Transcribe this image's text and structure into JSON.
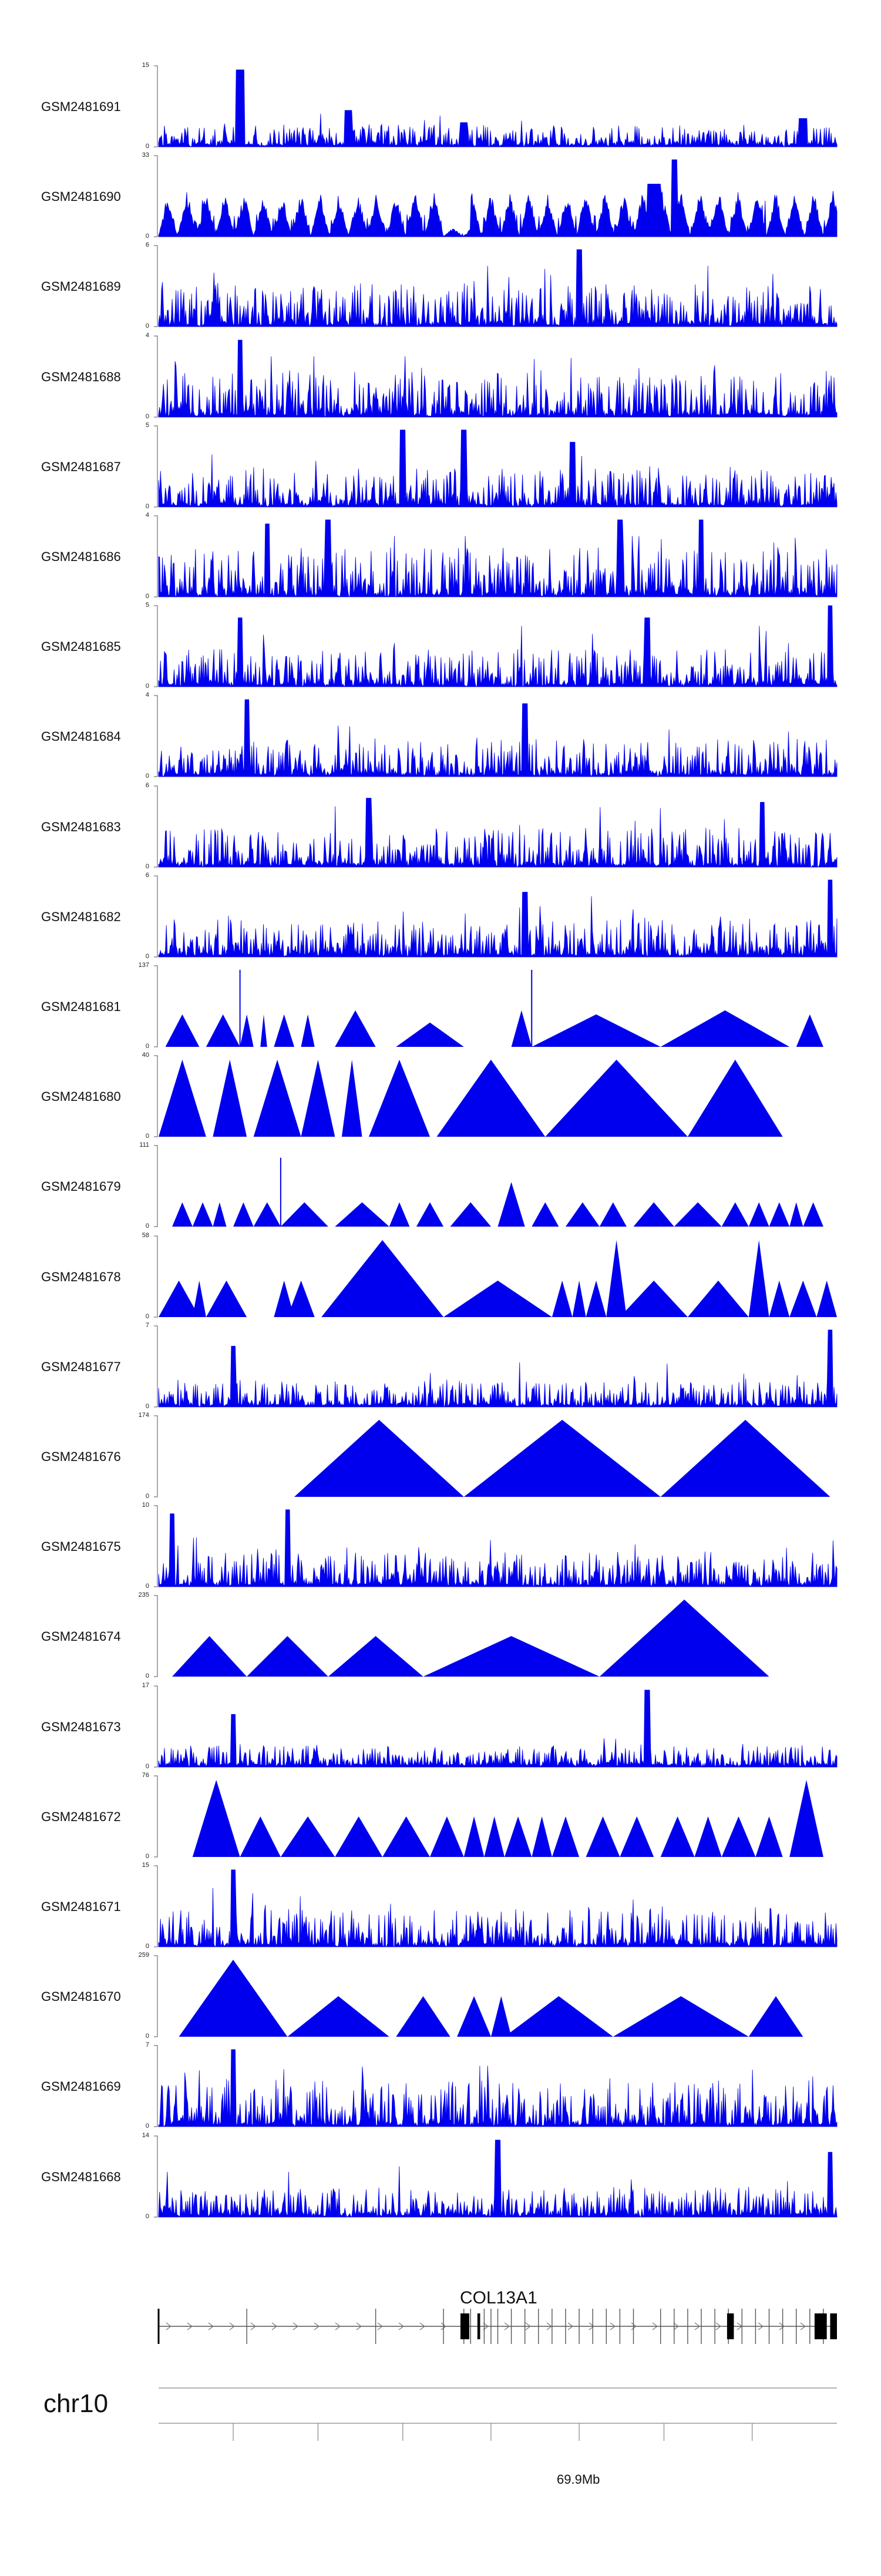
{
  "chart_data": {
    "type": "area",
    "color": "#0000ee",
    "tracks": [
      {
        "name": "GSM2481691",
        "ymax": "15",
        "ymin": "0",
        "peaks": [
          [
            0.12,
            0.95,
            0.006
          ],
          [
            0.28,
            0.45,
            0.006
          ],
          [
            0.45,
            0.3,
            0.006
          ],
          [
            0.95,
            0.35,
            0.006
          ]
        ],
        "base": 0.25,
        "mode": "noise",
        "seed": 1
      },
      {
        "name": "GSM2481690",
        "ymax": "33",
        "ymin": "0",
        "base": 0.45,
        "mode": "tri-dense",
        "seed": 2
      },
      {
        "name": "GSM2481689",
        "ymax": "6",
        "ymin": "0",
        "peaks": [
          [
            0.62,
            0.95,
            0.004
          ]
        ],
        "base": 0.5,
        "mode": "noise",
        "seed": 3
      },
      {
        "name": "GSM2481688",
        "ymax": "4",
        "ymin": "0",
        "peaks": [
          [
            0.12,
            0.95,
            0.004
          ]
        ],
        "base": 0.55,
        "mode": "noise",
        "seed": 4
      },
      {
        "name": "GSM2481687",
        "ymax": "5",
        "ymin": "0",
        "peaks": [
          [
            0.36,
            0.95,
            0.004
          ],
          [
            0.45,
            0.95,
            0.004
          ],
          [
            0.61,
            0.8,
            0.004
          ]
        ],
        "base": 0.45,
        "mode": "noise",
        "seed": 5
      },
      {
        "name": "GSM2481686",
        "ymax": "4",
        "ymin": "0",
        "peaks": [
          [
            0.16,
            0.9,
            0.004
          ],
          [
            0.25,
            0.95,
            0.004
          ],
          [
            0.68,
            0.95,
            0.004
          ],
          [
            0.8,
            0.95,
            0.004
          ]
        ],
        "base": 0.6,
        "mode": "noise",
        "seed": 6
      },
      {
        "name": "GSM2481685",
        "ymax": "5",
        "ymin": "0",
        "peaks": [
          [
            0.12,
            0.85,
            0.004
          ],
          [
            0.72,
            0.85,
            0.004
          ],
          [
            0.99,
            1.0,
            0.004
          ]
        ],
        "base": 0.45,
        "mode": "noise",
        "seed": 7
      },
      {
        "name": "GSM2481684",
        "ymax": "4",
        "ymin": "0",
        "peaks": [
          [
            0.13,
            0.95,
            0.004
          ],
          [
            0.54,
            0.9,
            0.004
          ]
        ],
        "base": 0.45,
        "mode": "noise",
        "seed": 8
      },
      {
        "name": "GSM2481683",
        "ymax": "6",
        "ymin": "0",
        "peaks": [
          [
            0.31,
            0.85,
            0.004
          ],
          [
            0.89,
            0.8,
            0.004
          ]
        ],
        "base": 0.45,
        "mode": "noise",
        "seed": 9
      },
      {
        "name": "GSM2481682",
        "ymax": "6",
        "ymin": "0",
        "peaks": [
          [
            0.54,
            0.8,
            0.004
          ],
          [
            0.99,
            0.95,
            0.004
          ]
        ],
        "base": 0.45,
        "mode": "noise",
        "seed": 10
      },
      {
        "name": "GSM2481681",
        "ymax": "137",
        "ymin": "0",
        "triangles": [
          [
            0.01,
            0.06,
            0.4
          ],
          [
            0.07,
            0.12,
            0.4
          ],
          [
            0.12,
            0.14,
            0.4
          ],
          [
            0.15,
            0.16,
            0.4
          ],
          [
            0.17,
            0.2,
            0.4
          ],
          [
            0.21,
            0.23,
            0.4
          ],
          [
            0.26,
            0.32,
            0.45
          ],
          [
            0.35,
            0.45,
            0.3
          ],
          [
            0.52,
            0.55,
            0.45
          ],
          [
            0.55,
            0.74,
            0.4
          ],
          [
            0.74,
            0.93,
            0.45
          ],
          [
            0.94,
            0.98,
            0.4
          ]
        ],
        "spikes": [
          [
            0.12,
            0.95
          ],
          [
            0.55,
            0.95
          ]
        ],
        "mode": "triangles"
      },
      {
        "name": "GSM2481680",
        "ymax": "40",
        "ymin": "0",
        "triangles": [
          [
            0.0,
            0.07,
            0.95
          ],
          [
            0.08,
            0.13,
            0.95
          ],
          [
            0.14,
            0.21,
            0.95
          ],
          [
            0.21,
            0.26,
            0.95
          ],
          [
            0.27,
            0.3,
            0.95
          ],
          [
            0.31,
            0.4,
            0.95
          ],
          [
            0.41,
            0.57,
            0.95
          ],
          [
            0.57,
            0.78,
            0.95
          ],
          [
            0.78,
            0.92,
            0.95
          ]
        ],
        "mode": "triangles"
      },
      {
        "name": "GSM2481679",
        "ymax": "111",
        "ymin": "0",
        "triangles": [
          [
            0.02,
            0.05,
            0.3
          ],
          [
            0.05,
            0.08,
            0.3
          ],
          [
            0.08,
            0.1,
            0.3
          ],
          [
            0.11,
            0.14,
            0.3
          ],
          [
            0.14,
            0.18,
            0.3
          ],
          [
            0.18,
            0.25,
            0.3
          ],
          [
            0.26,
            0.34,
            0.3
          ],
          [
            0.34,
            0.37,
            0.3
          ],
          [
            0.38,
            0.42,
            0.3
          ],
          [
            0.43,
            0.49,
            0.3
          ],
          [
            0.5,
            0.54,
            0.55
          ],
          [
            0.55,
            0.59,
            0.3
          ],
          [
            0.6,
            0.65,
            0.3
          ],
          [
            0.65,
            0.69,
            0.3
          ],
          [
            0.7,
            0.76,
            0.3
          ],
          [
            0.76,
            0.83,
            0.3
          ],
          [
            0.83,
            0.87,
            0.3
          ],
          [
            0.87,
            0.9,
            0.3
          ],
          [
            0.9,
            0.93,
            0.3
          ],
          [
            0.93,
            0.95,
            0.3
          ],
          [
            0.95,
            0.98,
            0.3
          ]
        ],
        "spikes": [
          [
            0.18,
            0.85
          ]
        ],
        "mode": "triangles"
      },
      {
        "name": "GSM2481678",
        "ymax": "58",
        "ymin": "0",
        "triangles": [
          [
            0.0,
            0.06,
            0.45
          ],
          [
            0.05,
            0.07,
            0.45
          ],
          [
            0.07,
            0.13,
            0.45
          ],
          [
            0.17,
            0.2,
            0.45
          ],
          [
            0.19,
            0.23,
            0.45
          ],
          [
            0.24,
            0.42,
            0.95
          ],
          [
            0.42,
            0.58,
            0.45
          ],
          [
            0.58,
            0.61,
            0.45
          ],
          [
            0.61,
            0.63,
            0.45
          ],
          [
            0.63,
            0.66,
            0.45
          ],
          [
            0.66,
            0.69,
            0.95
          ],
          [
            0.68,
            0.78,
            0.45
          ],
          [
            0.78,
            0.87,
            0.45
          ],
          [
            0.87,
            0.9,
            0.95
          ],
          [
            0.9,
            0.93,
            0.45
          ],
          [
            0.93,
            0.97,
            0.45
          ],
          [
            0.97,
            1.0,
            0.45
          ]
        ],
        "mode": "triangles"
      },
      {
        "name": "GSM2481677",
        "ymax": "7",
        "ymin": "0",
        "peaks": [
          [
            0.11,
            0.75,
            0.004
          ],
          [
            0.99,
            0.95,
            0.004
          ]
        ],
        "base": 0.3,
        "mode": "noise",
        "seed": 11
      },
      {
        "name": "GSM2481676",
        "ymax": "174",
        "ymin": "0",
        "triangles": [
          [
            0.2,
            0.45,
            0.95
          ],
          [
            0.45,
            0.74,
            0.95
          ],
          [
            0.74,
            0.99,
            0.95
          ]
        ],
        "mode": "triangles"
      },
      {
        "name": "GSM2481675",
        "ymax": "10",
        "ymin": "0",
        "peaks": [
          [
            0.02,
            0.9,
            0.004
          ],
          [
            0.19,
            0.95,
            0.004
          ]
        ],
        "base": 0.4,
        "mode": "noise",
        "seed": 12
      },
      {
        "name": "GSM2481674",
        "ymax": "235",
        "ymin": "0",
        "triangles": [
          [
            0.02,
            0.13,
            0.5
          ],
          [
            0.13,
            0.25,
            0.5
          ],
          [
            0.25,
            0.39,
            0.5
          ],
          [
            0.39,
            0.65,
            0.5
          ],
          [
            0.65,
            0.9,
            0.95
          ]
        ],
        "mode": "triangles"
      },
      {
        "name": "GSM2481673",
        "ymax": "17",
        "ymin": "0",
        "peaks": [
          [
            0.11,
            0.65,
            0.004
          ],
          [
            0.72,
            0.95,
            0.004
          ]
        ],
        "base": 0.25,
        "mode": "noise",
        "seed": 13
      },
      {
        "name": "GSM2481672",
        "ymax": "76",
        "ymin": "0",
        "triangles": [
          [
            0.05,
            0.12,
            0.95
          ],
          [
            0.12,
            0.18,
            0.5
          ],
          [
            0.18,
            0.26,
            0.5
          ],
          [
            0.26,
            0.33,
            0.5
          ],
          [
            0.33,
            0.4,
            0.5
          ],
          [
            0.4,
            0.45,
            0.5
          ],
          [
            0.45,
            0.48,
            0.5
          ],
          [
            0.48,
            0.51,
            0.5
          ],
          [
            0.51,
            0.55,
            0.5
          ],
          [
            0.55,
            0.58,
            0.5
          ],
          [
            0.58,
            0.62,
            0.5
          ],
          [
            0.63,
            0.68,
            0.5
          ],
          [
            0.68,
            0.73,
            0.5
          ],
          [
            0.74,
            0.79,
            0.5
          ],
          [
            0.79,
            0.83,
            0.5
          ],
          [
            0.83,
            0.88,
            0.5
          ],
          [
            0.88,
            0.92,
            0.5
          ],
          [
            0.93,
            0.98,
            0.95
          ]
        ],
        "mode": "triangles"
      },
      {
        "name": "GSM2481671",
        "ymax": "15",
        "ymin": "0",
        "peaks": [
          [
            0.11,
            0.95,
            0.004
          ]
        ],
        "base": 0.45,
        "mode": "noise",
        "seed": 14
      },
      {
        "name": "GSM2481670",
        "ymax": "259",
        "ymin": "0",
        "triangles": [
          [
            0.03,
            0.19,
            0.95
          ],
          [
            0.19,
            0.34,
            0.5
          ],
          [
            0.35,
            0.43,
            0.5
          ],
          [
            0.44,
            0.49,
            0.5
          ],
          [
            0.49,
            0.52,
            0.5
          ],
          [
            0.51,
            0.67,
            0.5
          ],
          [
            0.67,
            0.87,
            0.5
          ],
          [
            0.87,
            0.95,
            0.5
          ]
        ],
        "mode": "triangles"
      },
      {
        "name": "GSM2481669",
        "ymax": "7",
        "ymin": "0",
        "peaks": [
          [
            0.11,
            0.95,
            0.004
          ]
        ],
        "base": 0.55,
        "mode": "noise",
        "seed": 15
      },
      {
        "name": "GSM2481668",
        "ymax": "14",
        "ymin": "0",
        "peaks": [
          [
            0.5,
            0.95,
            0.004
          ],
          [
            0.99,
            0.8,
            0.004
          ]
        ],
        "base": 0.35,
        "mode": "noise",
        "seed": 16
      }
    ],
    "gene": {
      "name": "COL13A1",
      "strand_arrow": ">",
      "exons": [
        0.0,
        0.13,
        0.32,
        0.42,
        0.45,
        0.46,
        0.48,
        0.49,
        0.5,
        0.52,
        0.54,
        0.56,
        0.58,
        0.6,
        0.62,
        0.64,
        0.66,
        0.68,
        0.7,
        0.74,
        0.76,
        0.78,
        0.8,
        0.82,
        0.84,
        0.86,
        0.88,
        0.9,
        0.92,
        0.94,
        0.96,
        0.98
      ],
      "thick_exons": [
        [
          0.445,
          0.458
        ],
        [
          0.47,
          0.474
        ],
        [
          0.838,
          0.848
        ],
        [
          0.967,
          0.985
        ],
        [
          0.99,
          1.0
        ]
      ]
    },
    "chromosome": "chr10",
    "position_label": "69.9Mb",
    "axis_ticks": [
      0.11,
      0.235,
      0.36,
      0.49,
      0.62,
      0.745,
      0.875
    ]
  }
}
